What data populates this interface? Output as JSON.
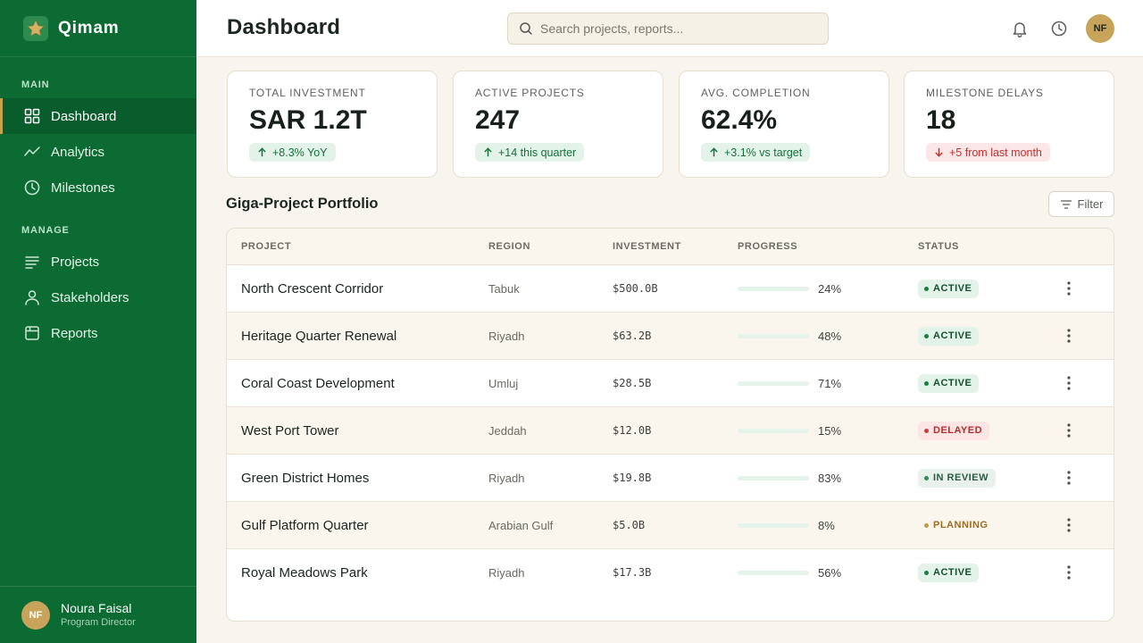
{
  "app": {
    "name": "Qimam"
  },
  "sidebar": {
    "sections": [
      {
        "title": "MAIN",
        "items": [
          {
            "label": "Dashboard",
            "icon": "grid-icon",
            "active": true
          },
          {
            "label": "Analytics",
            "icon": "trend-icon"
          },
          {
            "label": "Milestones",
            "icon": "clock-icon"
          }
        ]
      },
      {
        "title": "MANAGE",
        "items": [
          {
            "label": "Projects",
            "icon": "list-icon"
          },
          {
            "label": "Stakeholders",
            "icon": "user-icon"
          },
          {
            "label": "Reports",
            "icon": "report-icon"
          }
        ]
      }
    ],
    "user": {
      "initials": "NF",
      "name": "Noura Faisal",
      "role": "Program Director"
    }
  },
  "header": {
    "title": "Dashboard",
    "search_placeholder": "Search projects, reports...",
    "avatar_initials": "NF"
  },
  "kpis": [
    {
      "label": "TOTAL INVESTMENT",
      "value": "SAR 1.2T",
      "delta": "+8.3% YoY",
      "trend": "up"
    },
    {
      "label": "ACTIVE PROJECTS",
      "value": "247",
      "delta": "+14 this quarter",
      "trend": "up"
    },
    {
      "label": "AVG. COMPLETION",
      "value": "62.4%",
      "delta": "+3.1% vs target",
      "trend": "up"
    },
    {
      "label": "MILESTONE DELAYS",
      "value": "18",
      "delta": "+5 from last month",
      "trend": "down"
    }
  ],
  "portfolio": {
    "title": "Giga-Project Portfolio",
    "filter_label": "Filter",
    "columns": [
      "PROJECT",
      "REGION",
      "INVESTMENT",
      "PROGRESS",
      "STATUS"
    ],
    "rows": [
      {
        "project": "North Crescent Corridor",
        "region": "Tabuk",
        "investment": "$500.0B",
        "progress": 24,
        "progress_label": "24%",
        "status": "ACTIVE",
        "status_kind": "active"
      },
      {
        "project": "Heritage Quarter Renewal",
        "region": "Riyadh",
        "investment": "$63.2B",
        "progress": 48,
        "progress_label": "48%",
        "status": "ACTIVE",
        "status_kind": "active"
      },
      {
        "project": "Coral Coast Development",
        "region": "Umluj",
        "investment": "$28.5B",
        "progress": 71,
        "progress_label": "71%",
        "status": "ACTIVE",
        "status_kind": "active"
      },
      {
        "project": "West Port Tower",
        "region": "Jeddah",
        "investment": "$12.0B",
        "progress": 15,
        "progress_label": "15%",
        "status": "DELAYED",
        "status_kind": "delayed"
      },
      {
        "project": "Green District Homes",
        "region": "Riyadh",
        "investment": "$19.8B",
        "progress": 83,
        "progress_label": "83%",
        "status": "IN REVIEW",
        "status_kind": "review"
      },
      {
        "project": "Gulf Platform Quarter",
        "region": "Arabian Gulf",
        "investment": "$5.0B",
        "progress": 8,
        "progress_label": "8%",
        "status": "PLANNING",
        "status_kind": "planning"
      },
      {
        "project": "Royal Meadows Park",
        "region": "Riyadh",
        "investment": "$17.3B",
        "progress": 56,
        "progress_label": "56%",
        "status": "ACTIVE",
        "status_kind": "active"
      }
    ]
  }
}
